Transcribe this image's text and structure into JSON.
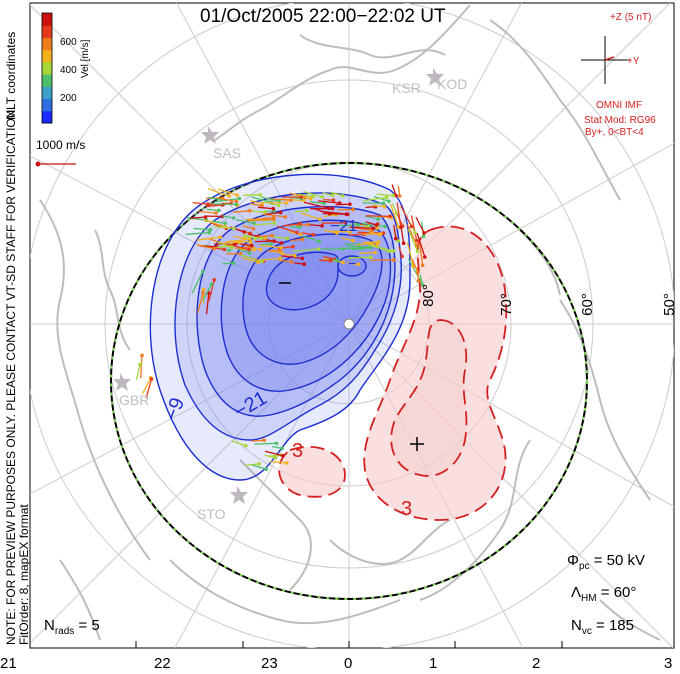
{
  "title": "01/Oct/2005 22:00−22:02 UT",
  "coords_label": "MLT coordinates",
  "notice_line1": "NOTE: FOR PREVIEW PURPOSES ONLY. PLEASE CONTACT VT-SD STAFF FOR VERIFICATION.",
  "notice_line2": "FitOrder: 8, mapEX format",
  "colorbar": {
    "unit_label": "Vel [m/s]",
    "ticks": [
      "600",
      "400",
      "200"
    ],
    "colors": [
      "#1a2bff",
      "#2d6fe0",
      "#3aa0c8",
      "#4ec06a",
      "#a8d838",
      "#f2b21c",
      "#f07b1a",
      "#e63a1c",
      "#cc1010"
    ]
  },
  "scale_vector_label": "1000 m/s",
  "imf": {
    "z_label": "+Z (5 nT)",
    "y_label": "+Y",
    "source": "OMNI IMF",
    "model": "Stat Mod: RG96",
    "condition": "By+, 0<BT<4"
  },
  "stats": {
    "phi_pc": "Φ",
    "phi_pc_sub": "pc",
    "phi_pc_value": "= 50 kV",
    "lambda_hm": "Λ",
    "lambda_hm_sub": "HM",
    "lambda_hm_value": "= 60°",
    "n_vc": "N",
    "n_vc_sub": "vc",
    "n_vc_value": "= 185",
    "n_rads": "N",
    "n_rads_sub": "rads",
    "n_rads_value": "= 5"
  },
  "mlt_ticks": [
    "21",
    "22",
    "23",
    "0",
    "1",
    "2",
    "3"
  ],
  "latitude_labels": [
    "80°",
    "70°",
    "60°",
    "50°"
  ],
  "radar_sites": [
    "KOD",
    "SAS",
    "GBR",
    "STO",
    "KSR"
  ],
  "contour_labels": [
    "−9",
    "−21",
    "−21",
    "−",
    "3",
    "3"
  ],
  "extrema_markers": [
    "−",
    "+"
  ],
  "colors": {
    "negative_contour": "#1c2fd0",
    "positive_contour": "#d42020",
    "negative_fill": "#7a86f0",
    "positive_fill": "#f5c9c9",
    "heppner_boundary": "#000000",
    "grid": "#cccccc",
    "coast": "#bdbdbd"
  }
}
